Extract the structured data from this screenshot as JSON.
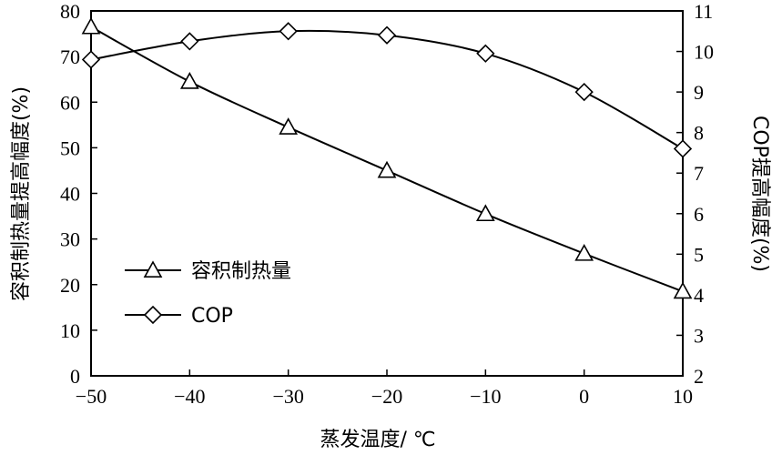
{
  "chart_data": {
    "type": "line",
    "x": [
      -50,
      -40,
      -30,
      -20,
      -10,
      0,
      10
    ],
    "xlabel": "蒸发温度/ ℃",
    "ylabel_left": "容积制热量提高幅度(%)",
    "ylabel_right": "COP提高幅度(%)",
    "xlim": [
      -50,
      10
    ],
    "ylim_left": [
      0,
      80
    ],
    "ylim_right": [
      2,
      11
    ],
    "x_ticks": [
      "−50",
      "−40",
      "−30",
      "−20",
      "−10",
      "0",
      "10"
    ],
    "y_ticks_left": [
      "0",
      "10",
      "20",
      "30",
      "40",
      "50",
      "60",
      "70",
      "80"
    ],
    "y_ticks_right": [
      "2",
      "3",
      "4",
      "5",
      "6",
      "7",
      "8",
      "9",
      "10",
      "11"
    ],
    "grid": false,
    "legend_position": "lower-left",
    "series": [
      {
        "name": "容积制热量",
        "marker": "triangle",
        "axis": "left",
        "values": [
          76.5,
          64.5,
          54.5,
          45.0,
          35.5,
          26.8,
          18.5
        ]
      },
      {
        "name": "COP",
        "marker": "diamond",
        "axis": "right",
        "values": [
          9.8,
          10.25,
          10.5,
          10.4,
          9.95,
          9.0,
          7.6
        ]
      }
    ]
  }
}
